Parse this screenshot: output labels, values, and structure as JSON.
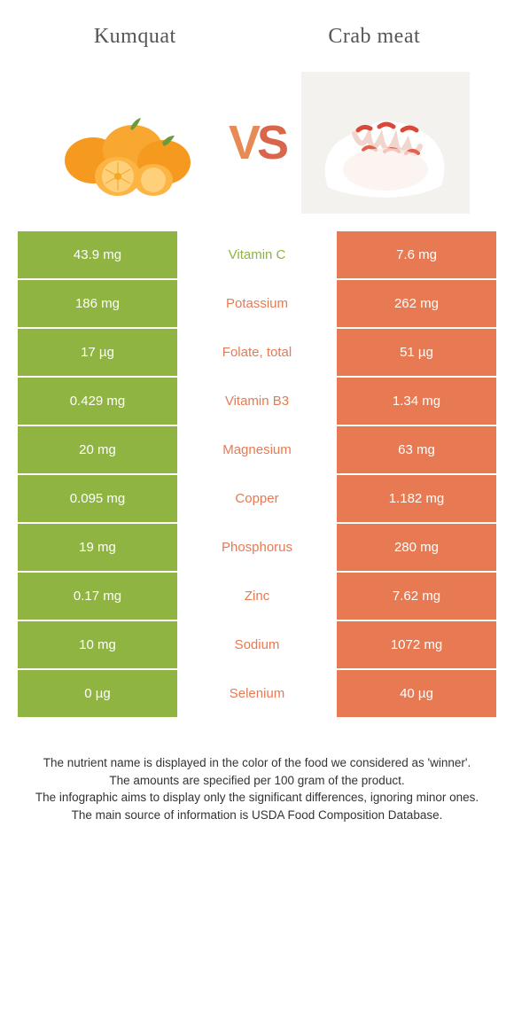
{
  "header": {
    "left_title": "Kumquat",
    "right_title": "Crab meat",
    "vs_text": "VS",
    "vs_color_left": "#e88a56",
    "vs_color_right": "#d9654b"
  },
  "colors": {
    "left_bg": "#8fb441",
    "right_bg": "#e77a53",
    "row_border": "#ffffff",
    "mid_bg": "#ffffff"
  },
  "rows": [
    {
      "left": "43.9 mg",
      "mid": "Vitamin C",
      "right": "7.6 mg",
      "winner": "left"
    },
    {
      "left": "186 mg",
      "mid": "Potassium",
      "right": "262 mg",
      "winner": "right"
    },
    {
      "left": "17 µg",
      "mid": "Folate, total",
      "right": "51 µg",
      "winner": "right"
    },
    {
      "left": "0.429 mg",
      "mid": "Vitamin B3",
      "right": "1.34 mg",
      "winner": "right"
    },
    {
      "left": "20 mg",
      "mid": "Magnesium",
      "right": "63 mg",
      "winner": "right"
    },
    {
      "left": "0.095 mg",
      "mid": "Copper",
      "right": "1.182 mg",
      "winner": "right"
    },
    {
      "left": "19 mg",
      "mid": "Phosphorus",
      "right": "280 mg",
      "winner": "right"
    },
    {
      "left": "0.17 mg",
      "mid": "Zinc",
      "right": "7.62 mg",
      "winner": "right"
    },
    {
      "left": "10 mg",
      "mid": "Sodium",
      "right": "1072 mg",
      "winner": "right"
    },
    {
      "left": "0 µg",
      "mid": "Selenium",
      "right": "40 µg",
      "winner": "right"
    }
  ],
  "footnote": {
    "line1": "The nutrient name is displayed in the color of the food we considered as 'winner'.",
    "line2": "The amounts are specified per 100 gram of the product.",
    "line3": "The infographic aims to display only the significant differences, ignoring minor ones.",
    "line4": "The main source of information is USDA Food Composition Database."
  },
  "style": {
    "title_fontsize": 24,
    "cell_fontsize": 15,
    "footnote_fontsize": 13.5,
    "row_padding": 18
  }
}
